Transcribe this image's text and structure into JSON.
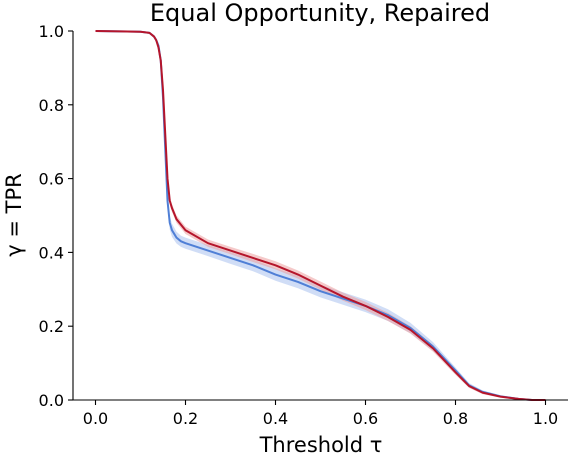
{
  "chart_data": {
    "type": "line",
    "title": "Equal Opportunity, Repaired",
    "xlabel": "Threshold τ",
    "ylabel": "γ = TPR",
    "xlim": [
      -0.05,
      1.05
    ],
    "ylim": [
      0.0,
      1.0
    ],
    "xticks": [
      "0.0",
      "0.2",
      "0.4",
      "0.6",
      "0.8",
      "1.0"
    ],
    "yticks": [
      "0.0",
      "0.2",
      "0.4",
      "0.6",
      "0.8",
      "1.0"
    ],
    "grid": false,
    "legend": false,
    "series": [
      {
        "color": "#4f7fd6",
        "band_color": "#a9c1ef",
        "x": [
          0.0,
          0.1,
          0.12,
          0.13,
          0.135,
          0.14,
          0.145,
          0.15,
          0.155,
          0.16,
          0.165,
          0.17,
          0.175,
          0.18,
          0.19,
          0.2,
          0.25,
          0.3,
          0.35,
          0.4,
          0.45,
          0.5,
          0.55,
          0.6,
          0.65,
          0.7,
          0.75,
          0.8,
          0.83,
          0.86,
          0.9,
          0.94,
          0.97,
          1.0
        ],
        "y": [
          1.0,
          0.998,
          0.995,
          0.985,
          0.975,
          0.96,
          0.92,
          0.82,
          0.68,
          0.54,
          0.48,
          0.46,
          0.45,
          0.44,
          0.43,
          0.425,
          0.405,
          0.385,
          0.365,
          0.34,
          0.32,
          0.295,
          0.275,
          0.255,
          0.23,
          0.195,
          0.145,
          0.08,
          0.04,
          0.022,
          0.01,
          0.003,
          0.0,
          0.0
        ],
        "band": [
          0.0,
          0.0,
          0.002,
          0.004,
          0.006,
          0.008,
          0.01,
          0.012,
          0.015,
          0.018,
          0.018,
          0.018,
          0.017,
          0.016,
          0.015,
          0.015,
          0.015,
          0.016,
          0.016,
          0.017,
          0.017,
          0.017,
          0.017,
          0.017,
          0.016,
          0.014,
          0.012,
          0.008,
          0.006,
          0.004,
          0.003,
          0.002,
          0.0,
          0.0
        ]
      },
      {
        "color": "#b5152b",
        "band_color": "#ec9f9f",
        "x": [
          0.0,
          0.1,
          0.12,
          0.13,
          0.135,
          0.14,
          0.145,
          0.15,
          0.155,
          0.16,
          0.165,
          0.17,
          0.175,
          0.18,
          0.19,
          0.2,
          0.25,
          0.3,
          0.35,
          0.4,
          0.45,
          0.5,
          0.55,
          0.6,
          0.65,
          0.7,
          0.75,
          0.8,
          0.83,
          0.86,
          0.9,
          0.94,
          0.97,
          1.0
        ],
        "y": [
          1.0,
          0.998,
          0.995,
          0.985,
          0.975,
          0.955,
          0.92,
          0.84,
          0.72,
          0.6,
          0.54,
          0.52,
          0.505,
          0.49,
          0.475,
          0.46,
          0.425,
          0.405,
          0.385,
          0.365,
          0.34,
          0.31,
          0.28,
          0.255,
          0.225,
          0.19,
          0.14,
          0.075,
          0.038,
          0.02,
          0.009,
          0.003,
          0.0,
          0.0
        ],
        "band": [
          0.0,
          0.0,
          0.002,
          0.004,
          0.006,
          0.008,
          0.01,
          0.012,
          0.014,
          0.014,
          0.012,
          0.011,
          0.01,
          0.01,
          0.01,
          0.01,
          0.01,
          0.01,
          0.011,
          0.011,
          0.011,
          0.011,
          0.011,
          0.011,
          0.011,
          0.01,
          0.009,
          0.007,
          0.005,
          0.004,
          0.003,
          0.002,
          0.0,
          0.0
        ]
      }
    ]
  }
}
